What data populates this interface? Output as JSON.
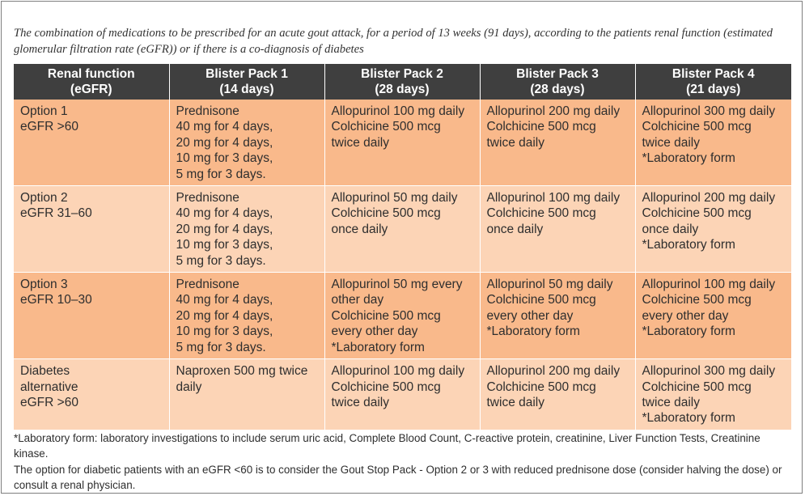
{
  "caption": "The combination of medications to be prescribed for an acute gout attack, for a period of 13 weeks (91 days), according to the patients renal function (estimated glomerular filtration rate (eGFR)) or if there is a co-diagnosis of diabetes",
  "table": {
    "headers": [
      "Renal function\n(eGFR)",
      "Blister Pack 1\n(14 days)",
      "Blister Pack 2\n(28 days)",
      "Blister Pack 3\n(28 days)",
      "Blister Pack 4\n(21 days)"
    ],
    "rows": [
      [
        "Option 1\neGFR >60",
        "Prednisone\n40 mg for 4 days,\n20 mg for 4 days,\n10 mg for 3 days,\n5 mg for 3 days.",
        "Allopurinol 100 mg daily\nColchicine 500 mcg\ntwice daily",
        "Allopurinol 200 mg daily\nColchicine 500 mcg\ntwice daily",
        "Allopurinol 300 mg daily\nColchicine 500 mcg\ntwice daily\n*Laboratory form"
      ],
      [
        "Option 2\neGFR 31–60",
        "Prednisone\n40 mg for 4 days,\n20 mg for 4 days,\n10 mg for 3 days,\n5 mg for 3 days.",
        "Allopurinol 50 mg daily\nColchicine 500 mcg\nonce daily",
        "Allopurinol 100 mg daily\nColchicine 500 mcg\nonce daily",
        "Allopurinol 200 mg daily\nColchicine 500 mcg\nonce daily\n*Laboratory form"
      ],
      [
        "Option 3\neGFR 10–30",
        "Prednisone\n40 mg for 4 days,\n20 mg for 4 days,\n10 mg for 3 days,\n5 mg for 3 days.",
        "Allopurinol 50 mg every\nother day\nColchicine 500 mcg\nevery other day\n*Laboratory form",
        "Allopurinol 50 mg daily\nColchicine 500 mcg\nevery other day\n*Laboratory form",
        "Allopurinol 100 mg daily\nColchicine 500 mcg\nevery other day\n*Laboratory form"
      ],
      [
        "Diabetes\nalternative\neGFR >60",
        "Naproxen 500 mg twice\ndaily",
        "Allopurinol 100 mg daily\nColchicine 500 mcg\ntwice daily",
        "Allopurinol 200 mg daily\nColchicine 500 mcg\ntwice daily",
        "Allopurinol 300 mg daily\nColchicine 500 mcg\ntwice daily\n*Laboratory form"
      ]
    ]
  },
  "footnotes": [
    "*Laboratory form: laboratory investigations to include serum uric acid, Complete Blood Count, C-reactive protein, creatinine, Liver Function Tests, Creatinine kinase.",
    "The option for diabetic patients with an eGFR <60 is to consider the Gout Stop Pack - Option 2 or 3 with reduced prednisone dose (consider halving the dose) or consult a renal physician."
  ],
  "colors": {
    "header_bg": "#3f3f3f",
    "row_dark": "#f9b98b",
    "row_light": "#fcd4b6"
  }
}
